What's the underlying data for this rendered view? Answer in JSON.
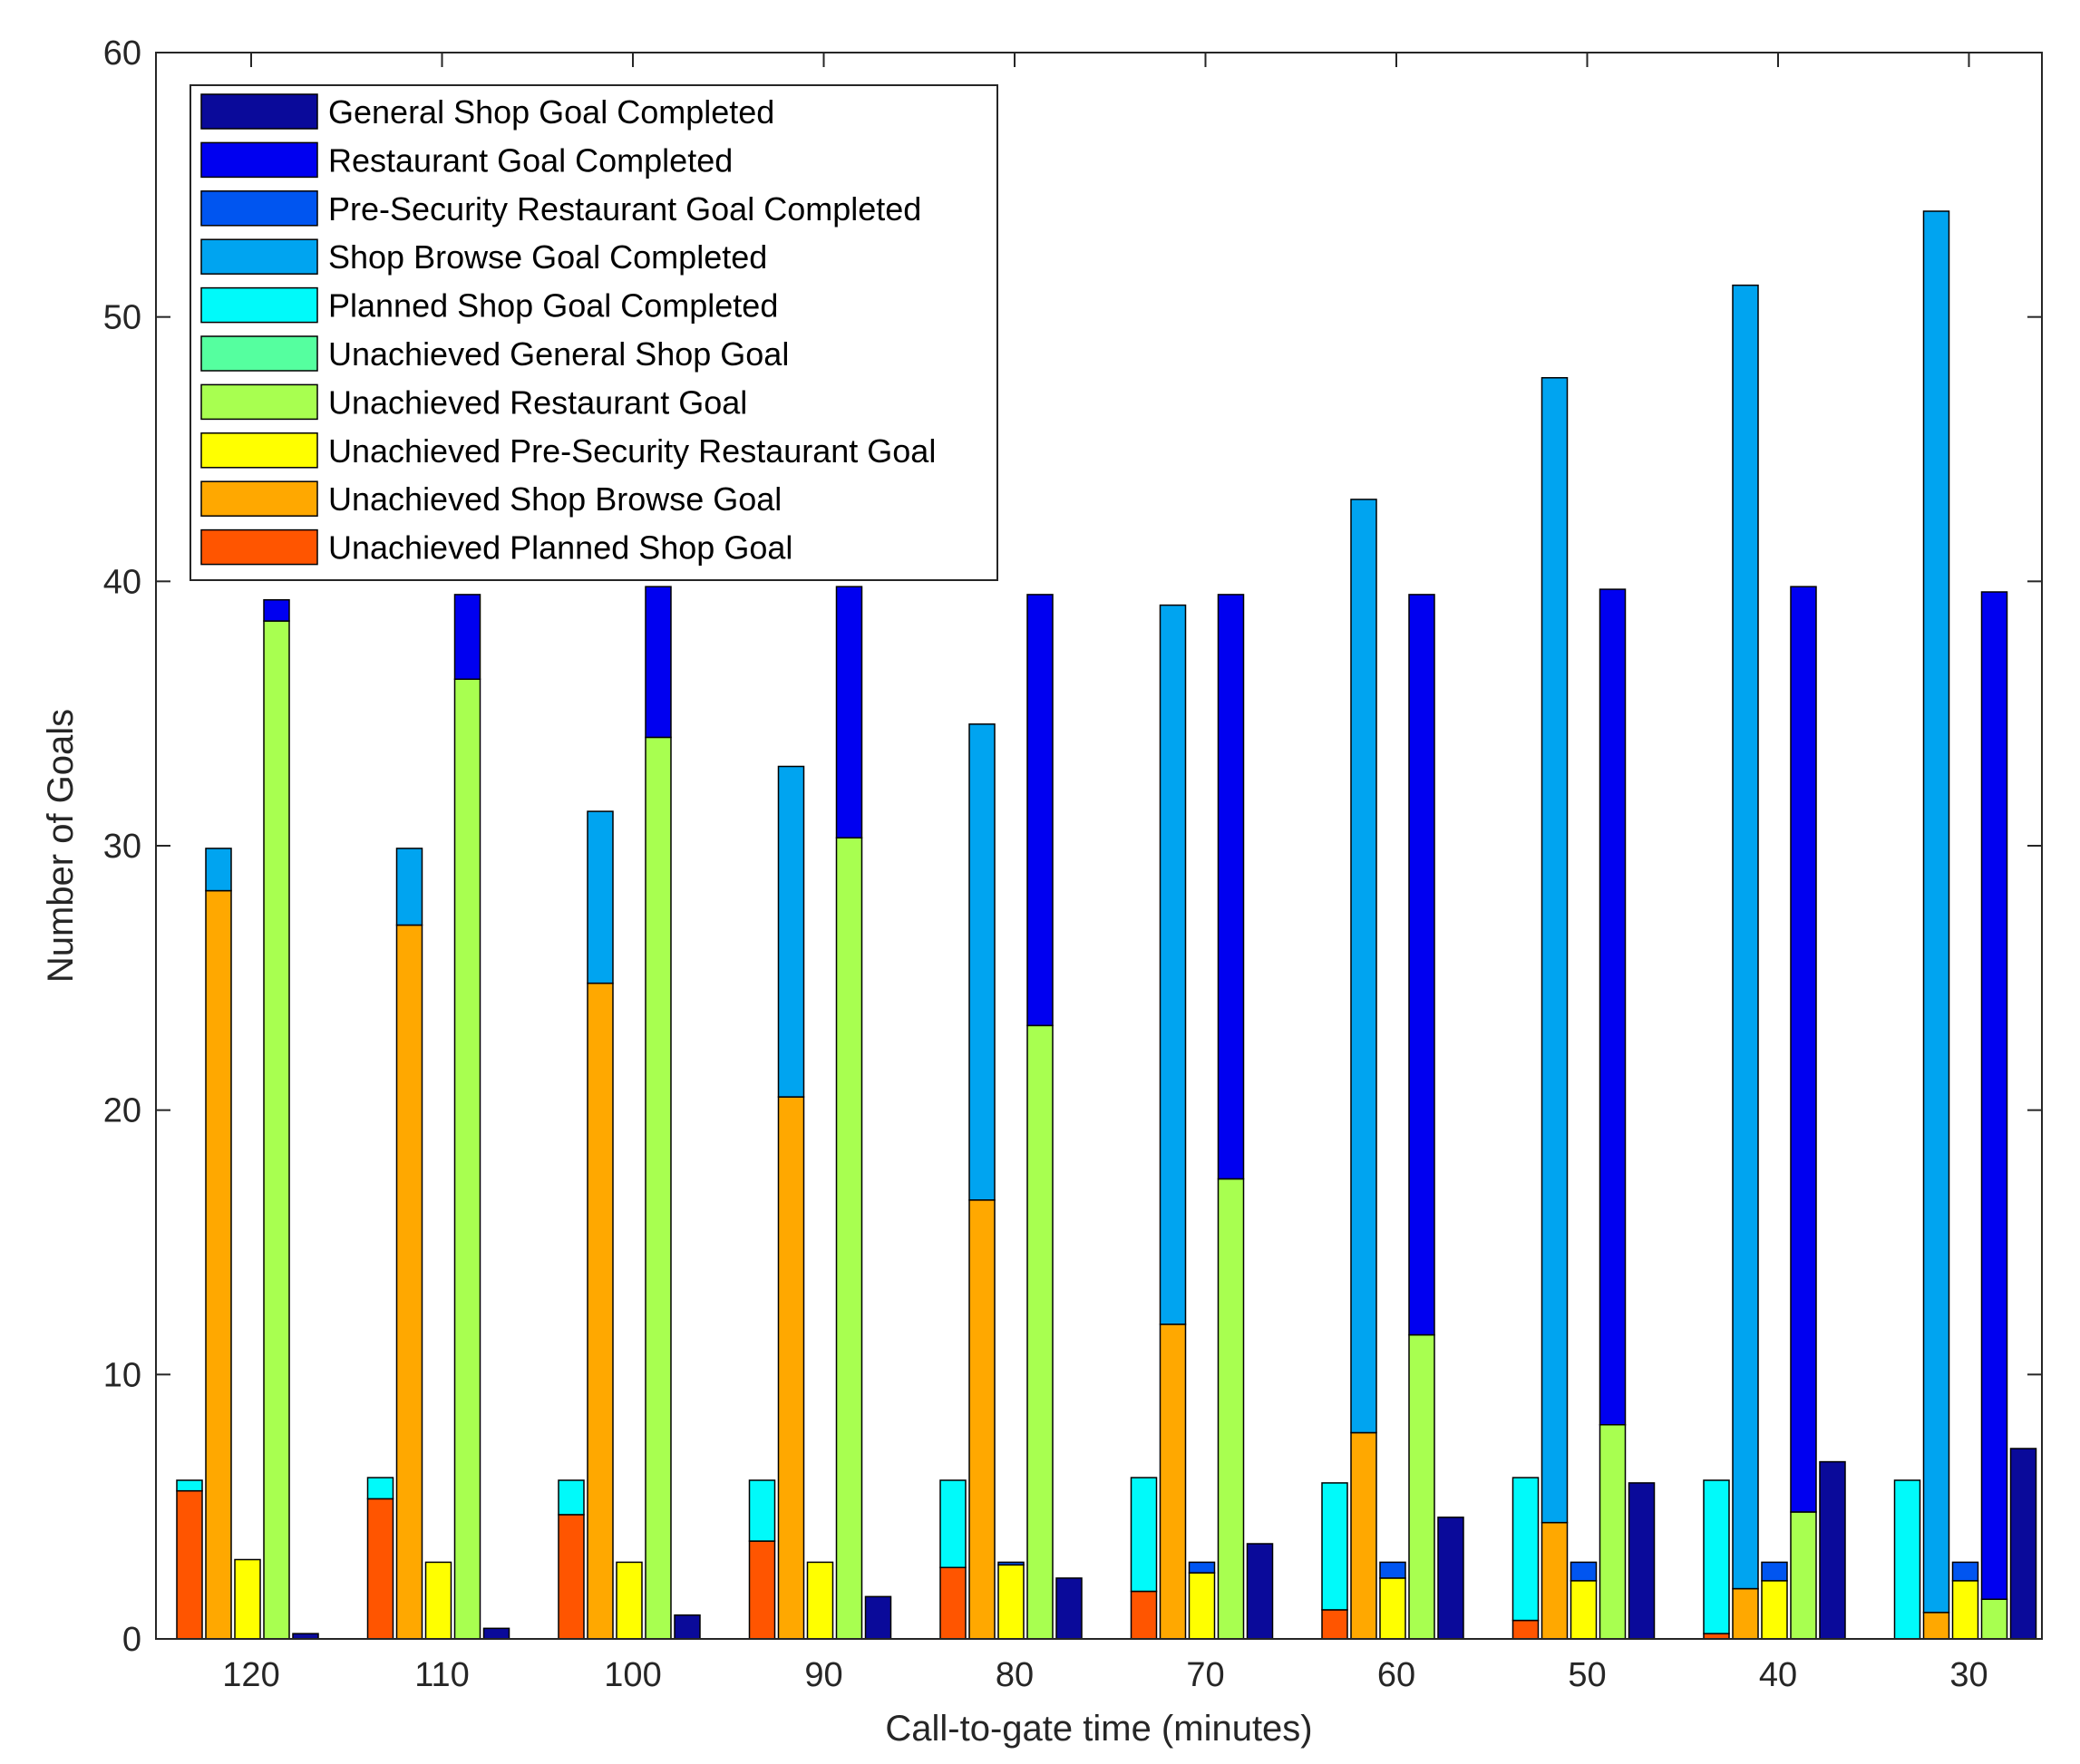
{
  "chart_data": {
    "type": "bar",
    "subtype": "grouped-stacked",
    "title": "",
    "xlabel": "Call-to-gate time (minutes)",
    "ylabel": "Number of Goals",
    "ylim": [
      0,
      60
    ],
    "yticks": [
      "0",
      "10",
      "20",
      "30",
      "40",
      "50",
      "60"
    ],
    "categories": [
      "120",
      "110",
      "100",
      "90",
      "80",
      "70",
      "60",
      "50",
      "40",
      "30"
    ],
    "legend_position": "top-left",
    "groups": [
      {
        "name": "Planned Shop Goal",
        "components": [
          {
            "label": "Unachieved Planned Shop Goal",
            "values": [
              5.6,
              5.3,
              4.7,
              3.7,
              2.7,
              1.8,
              1.1,
              0.7,
              0.2,
              0.0
            ]
          },
          {
            "label": "Planned Shop Goal Completed",
            "values": [
              0.4,
              0.8,
              1.3,
              2.3,
              3.3,
              4.3,
              4.8,
              5.4,
              5.8,
              6.0
            ]
          }
        ]
      },
      {
        "name": "Shop Browse Goal",
        "components": [
          {
            "label": "Unachieved Shop Browse Goal",
            "values": [
              28.3,
              27.0,
              24.8,
              20.5,
              16.6,
              11.9,
              7.8,
              4.4,
              1.9,
              1.0
            ]
          },
          {
            "label": "Shop Browse Goal Completed",
            "values": [
              1.6,
              2.9,
              6.5,
              12.5,
              18.0,
              27.2,
              35.3,
              43.3,
              49.3,
              53.0
            ]
          }
        ]
      },
      {
        "name": "Pre-Security Restaurant Goal",
        "components": [
          {
            "label": "Unachieved Pre-Security Restaurant Goal",
            "values": [
              3.0,
              2.9,
              2.9,
              2.9,
              2.8,
              2.5,
              2.3,
              2.2,
              2.2,
              2.2
            ]
          },
          {
            "label": "Pre-Security Restaurant Goal Completed",
            "values": [
              0.0,
              0.0,
              0.0,
              0.0,
              0.1,
              0.4,
              0.6,
              0.7,
              0.7,
              0.7
            ]
          }
        ]
      },
      {
        "name": "Restaurant Goal",
        "components": [
          {
            "label": "Unachieved Restaurant Goal",
            "values": [
              38.5,
              36.3,
              34.1,
              30.3,
              23.2,
              17.4,
              11.5,
              8.1,
              4.8,
              1.5
            ]
          },
          {
            "label": "Restaurant Goal Completed",
            "values": [
              0.8,
              3.2,
              5.7,
              9.5,
              16.3,
              22.1,
              28.0,
              31.6,
              35.0,
              38.1
            ]
          }
        ]
      },
      {
        "name": "General Shop Goal",
        "components": [
          {
            "label": "Unachieved General Shop Goal",
            "values": [
              0,
              0,
              0,
              0,
              0,
              0,
              0,
              0,
              0,
              0
            ]
          },
          {
            "label": "General Shop Goal Completed",
            "values": [
              0.2,
              0.4,
              0.9,
              1.6,
              2.3,
              3.6,
              4.6,
              5.9,
              6.7,
              7.2
            ]
          }
        ]
      }
    ],
    "series_colors": {
      "General Shop Goal Completed": "#0a0a9a",
      "Restaurant Goal Completed": "#0000f0",
      "Pre-Security Restaurant Goal Completed": "#0055f0",
      "Shop Browse Goal Completed": "#00a4f0",
      "Planned Shop Goal Completed": "#00fafa",
      "Unachieved General Shop Goal": "#55ff9f",
      "Unachieved Restaurant Goal": "#a8ff50",
      "Unachieved Pre-Security Restaurant Goal": "#ffff00",
      "Unachieved Shop Browse Goal": "#ffa800",
      "Unachieved Planned Shop Goal": "#ff5500"
    },
    "legend": [
      "General Shop Goal Completed",
      "Restaurant Goal Completed",
      "Pre-Security Restaurant Goal Completed",
      "Shop Browse Goal Completed",
      "Planned Shop Goal Completed",
      "Unachieved General Shop Goal",
      "Unachieved Restaurant Goal",
      "Unachieved Pre-Security Restaurant Goal",
      "Unachieved Shop Browse Goal",
      "Unachieved Planned Shop Goal"
    ]
  }
}
